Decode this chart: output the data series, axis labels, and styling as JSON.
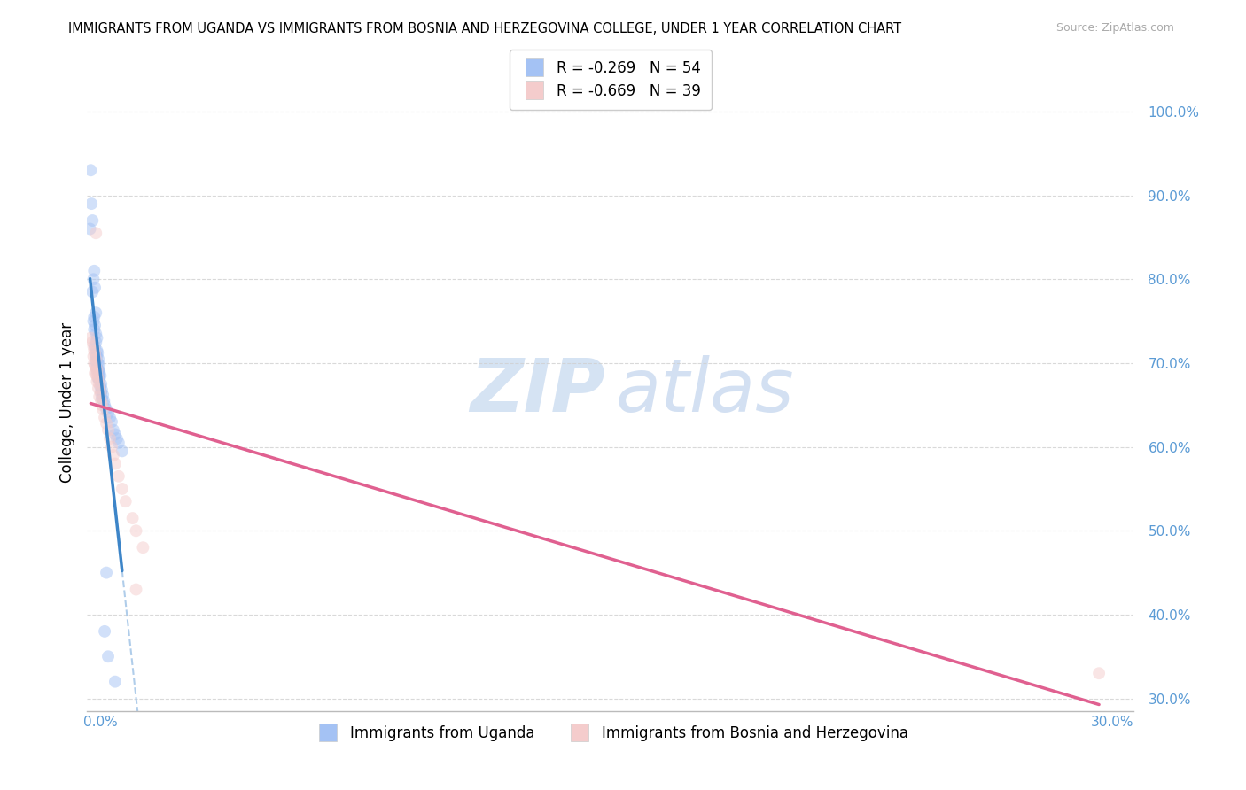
{
  "title": "IMMIGRANTS FROM UGANDA VS IMMIGRANTS FROM BOSNIA AND HERZEGOVINA COLLEGE, UNDER 1 YEAR CORRELATION CHART",
  "source": "Source: ZipAtlas.com",
  "ylabel": "College, Under 1 year",
  "legend1_label": "R = -0.269   N = 54",
  "legend2_label": "R = -0.669   N = 39",
  "legend1_color": "#a4c2f4",
  "legend2_color": "#f4cccc",
  "line1_color": "#3d85c8",
  "line2_color": "#e06090",
  "dashed_color": "#a8c8e8",
  "watermark_zip": "ZIP",
  "watermark_atlas": "atlas",
  "bottom_label1": "Immigrants from Uganda",
  "bottom_label2": "Immigrants from Bosnia and Herzegovina",
  "blue_scatter": [
    [
      0.001,
      0.93
    ],
    [
      0.0012,
      0.89
    ],
    [
      0.0015,
      0.87
    ],
    [
      0.0008,
      0.86
    ],
    [
      0.002,
      0.81
    ],
    [
      0.0018,
      0.8
    ],
    [
      0.0022,
      0.79
    ],
    [
      0.0015,
      0.785
    ],
    [
      0.0025,
      0.76
    ],
    [
      0.002,
      0.755
    ],
    [
      0.0018,
      0.75
    ],
    [
      0.0022,
      0.745
    ],
    [
      0.002,
      0.74
    ],
    [
      0.0025,
      0.735
    ],
    [
      0.0028,
      0.73
    ],
    [
      0.0025,
      0.725
    ],
    [
      0.0022,
      0.72
    ],
    [
      0.0028,
      0.715
    ],
    [
      0.003,
      0.712
    ],
    [
      0.0025,
      0.71
    ],
    [
      0.0028,
      0.708
    ],
    [
      0.0032,
      0.705
    ],
    [
      0.0025,
      0.702
    ],
    [
      0.003,
      0.7
    ],
    [
      0.0035,
      0.698
    ],
    [
      0.0028,
      0.695
    ],
    [
      0.0032,
      0.692
    ],
    [
      0.003,
      0.69
    ],
    [
      0.0035,
      0.688
    ],
    [
      0.0038,
      0.685
    ],
    [
      0.0032,
      0.682
    ],
    [
      0.0035,
      0.68
    ],
    [
      0.004,
      0.675
    ],
    [
      0.0038,
      0.672
    ],
    [
      0.0042,
      0.668
    ],
    [
      0.004,
      0.665
    ],
    [
      0.0045,
      0.662
    ],
    [
      0.0042,
      0.658
    ],
    [
      0.0048,
      0.655
    ],
    [
      0.005,
      0.65
    ],
    [
      0.0055,
      0.645
    ],
    [
      0.006,
      0.64
    ],
    [
      0.0065,
      0.635
    ],
    [
      0.007,
      0.63
    ],
    [
      0.0075,
      0.62
    ],
    [
      0.008,
      0.615
    ],
    [
      0.0085,
      0.61
    ],
    [
      0.009,
      0.605
    ],
    [
      0.01,
      0.595
    ],
    [
      0.0055,
      0.45
    ],
    [
      0.005,
      0.38
    ],
    [
      0.006,
      0.35
    ],
    [
      0.008,
      0.32
    ],
    [
      0.0035,
      0.69
    ]
  ],
  "pink_scatter": [
    [
      0.001,
      0.73
    ],
    [
      0.0015,
      0.725
    ],
    [
      0.0018,
      0.72
    ],
    [
      0.002,
      0.715
    ],
    [
      0.0022,
      0.712
    ],
    [
      0.0018,
      0.708
    ],
    [
      0.0025,
      0.705
    ],
    [
      0.002,
      0.7
    ],
    [
      0.0022,
      0.698
    ],
    [
      0.0025,
      0.695
    ],
    [
      0.0028,
      0.692
    ],
    [
      0.0025,
      0.69
    ],
    [
      0.0022,
      0.688
    ],
    [
      0.0028,
      0.685
    ],
    [
      0.0025,
      0.855
    ],
    [
      0.003,
      0.682
    ],
    [
      0.0028,
      0.678
    ],
    [
      0.0035,
      0.675
    ],
    [
      0.0032,
      0.67
    ],
    [
      0.0038,
      0.665
    ],
    [
      0.0035,
      0.66
    ],
    [
      0.004,
      0.655
    ],
    [
      0.0042,
      0.65
    ],
    [
      0.0045,
      0.645
    ],
    [
      0.005,
      0.635
    ],
    [
      0.0055,
      0.628
    ],
    [
      0.006,
      0.62
    ],
    [
      0.0065,
      0.61
    ],
    [
      0.007,
      0.6
    ],
    [
      0.0075,
      0.59
    ],
    [
      0.008,
      0.58
    ],
    [
      0.009,
      0.565
    ],
    [
      0.01,
      0.55
    ],
    [
      0.011,
      0.535
    ],
    [
      0.013,
      0.515
    ],
    [
      0.014,
      0.5
    ],
    [
      0.016,
      0.48
    ],
    [
      0.014,
      0.43
    ],
    [
      0.29,
      0.33
    ]
  ],
  "xlim": [
    0.0,
    0.3
  ],
  "ylim": [
    0.285,
    1.02
  ],
  "y_ticks": [
    0.3,
    0.4,
    0.5,
    0.6,
    0.7,
    0.8,
    0.9,
    1.0
  ],
  "y_tick_labels": [
    "30.0%",
    "40.0%",
    "50.0%",
    "60.0%",
    "70.0%",
    "80.0%",
    "90.0%",
    "100.0%"
  ],
  "background_color": "#ffffff",
  "grid_color": "#d0d0d0",
  "scatter_alpha": 0.5,
  "scatter_size": 100
}
